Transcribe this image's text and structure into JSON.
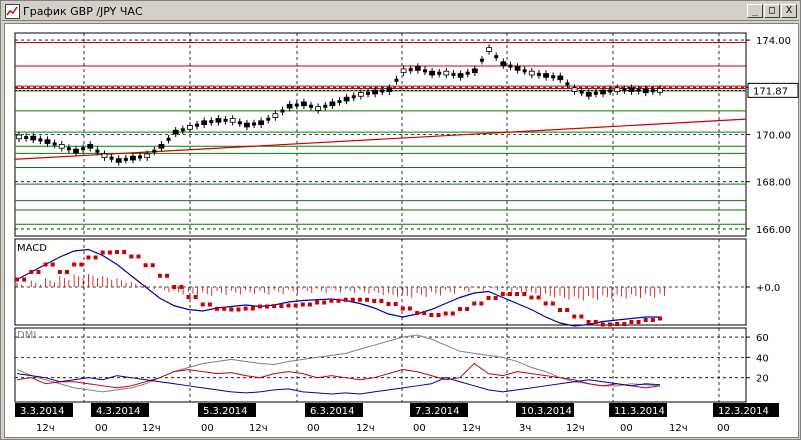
{
  "window": {
    "title": "График GBP /JPY ЧАС",
    "min_glyph": "_",
    "max_glyph": "□",
    "close_glyph": "X"
  },
  "colors": {
    "red_line": "#cc0000",
    "green_line": "#008000",
    "candle": "#000000",
    "macd_line": "#0000aa",
    "signal": "#cc0000",
    "plus_di": "#cc0000",
    "minus_di": "#0000aa",
    "adx": "#808080",
    "label_bg": "#000000",
    "label_fg": "#ffffff"
  },
  "price_panel": {
    "y_ticks": [
      "174.00",
      "172.00",
      "170.00",
      "168.00",
      "166.00"
    ],
    "current_price": "171.87"
  },
  "macd_panel": {
    "label": "MACD",
    "y_ticks": [
      "+0.0"
    ]
  },
  "dmi_panel": {
    "label": "DMI",
    "y_ticks": [
      "60",
      "40",
      "20"
    ]
  },
  "date_labels": [
    "3.3.2014",
    "4.3.2014",
    "5.3.2014",
    "6.3.2014",
    "7.3.2014",
    "10.3.2014",
    "11.3.2014",
    "12.3.2014"
  ],
  "hour_labels": [
    "12ч",
    "00",
    "12ч",
    "00",
    "12ч",
    "00",
    "12ч",
    "00",
    "12ч",
    "3ч",
    "12ч",
    "00",
    "12ч",
    "00"
  ],
  "chart_data": {
    "type": "line",
    "series": [
      {
        "values": [
          169.9,
          169.85,
          169.7,
          169.5,
          169.3,
          169.5,
          169.1,
          168.9,
          169.0,
          169.1,
          169.5,
          170.1,
          170.3,
          170.5,
          170.6,
          170.6,
          170.4,
          170.5,
          170.8,
          171.2,
          171.3,
          171.1,
          171.3,
          171.5,
          171.7,
          171.8,
          171.9,
          172.7,
          172.8,
          172.6,
          172.6,
          172.5,
          172.7,
          173.6,
          173.0,
          172.8,
          172.6,
          172.5,
          172.4,
          171.9,
          171.7,
          171.8,
          171.9,
          171.9,
          171.85,
          171.87
        ]
      }
    ],
    "ylim": [
      165.7,
      174.3
    ]
  }
}
